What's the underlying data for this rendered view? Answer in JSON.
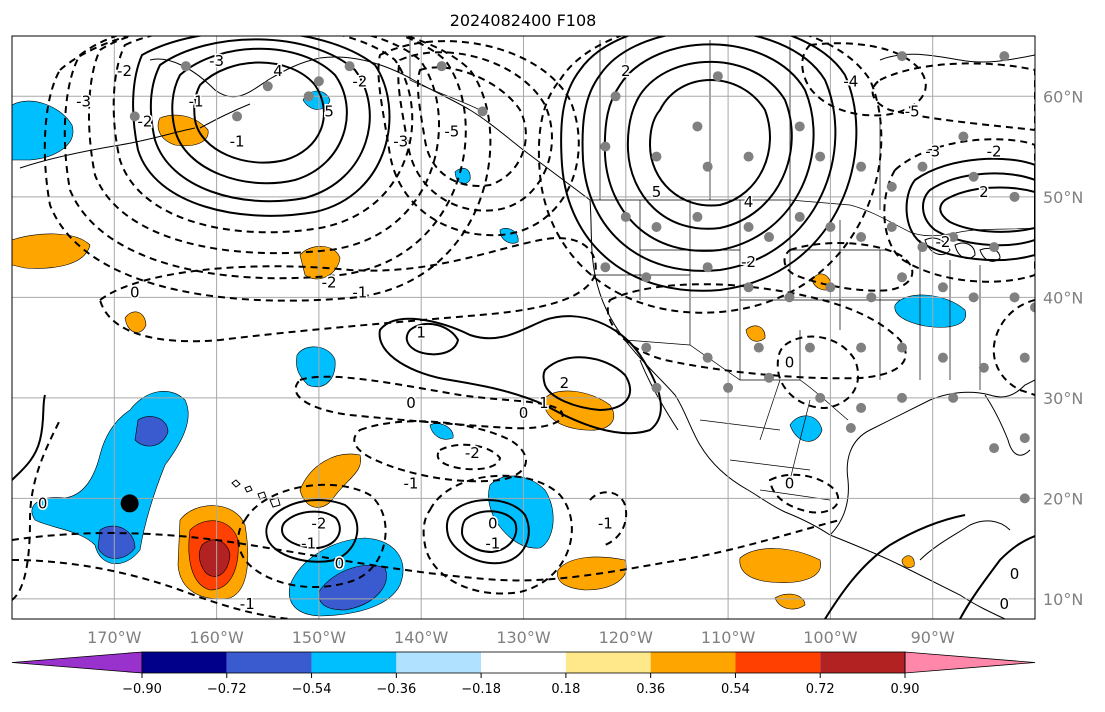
{
  "title": "2024082400 F108",
  "colors": {
    "purple": "#9932cc",
    "navy": "#00008b",
    "royal": "#3a5bcf",
    "deepsky": "#00bfff",
    "lightsky": "#b0e2ff",
    "white": "#ffffff",
    "khaki": "#ffe88a",
    "orange": "#ffa500",
    "orangered": "#ff4000",
    "firebrick": "#b22222",
    "pink": "#ff88aa",
    "gray": "#808080",
    "grid": "#a8a8a8"
  },
  "map": {
    "lon_range": [
      -180,
      -80
    ],
    "lat_range": [
      8,
      66
    ],
    "lat_labels": [
      {
        "lat": 60,
        "text": "60°N"
      },
      {
        "lat": 50,
        "text": "50°N"
      },
      {
        "lat": 40,
        "text": "40°N"
      },
      {
        "lat": 30,
        "text": "30°N"
      },
      {
        "lat": 20,
        "text": "20°N"
      },
      {
        "lat": 10,
        "text": "10°N"
      }
    ],
    "lon_labels": [
      {
        "lon": -170,
        "text": "170°W"
      },
      {
        "lon": -160,
        "text": "160°W"
      },
      {
        "lon": -150,
        "text": "150°W"
      },
      {
        "lon": -140,
        "text": "140°W"
      },
      {
        "lon": -130,
        "text": "130°W"
      },
      {
        "lon": -120,
        "text": "120°W"
      },
      {
        "lon": -110,
        "text": "110°W"
      },
      {
        "lon": -100,
        "text": "100°W"
      },
      {
        "lon": -90,
        "text": "90°W"
      }
    ],
    "contour_labels": [
      {
        "lon": -173,
        "lat": 59,
        "text": "-3"
      },
      {
        "lon": -169,
        "lat": 62,
        "text": "-2"
      },
      {
        "lon": -167,
        "lat": 57,
        "text": "-2"
      },
      {
        "lon": -162,
        "lat": 59,
        "text": "-1"
      },
      {
        "lon": -160,
        "lat": 63,
        "text": "-3"
      },
      {
        "lon": -154,
        "lat": 62,
        "text": "4"
      },
      {
        "lon": -149,
        "lat": 58,
        "text": "5"
      },
      {
        "lon": -146,
        "lat": 61,
        "text": "-2"
      },
      {
        "lon": -142,
        "lat": 55,
        "text": "-3"
      },
      {
        "lon": -137,
        "lat": 56,
        "text": "-5"
      },
      {
        "lon": -158,
        "lat": 55,
        "text": "-1"
      },
      {
        "lon": -168,
        "lat": 40,
        "text": "0"
      },
      {
        "lon": -149,
        "lat": 41,
        "text": "-2"
      },
      {
        "lon": -146,
        "lat": 40,
        "text": "-1"
      },
      {
        "lon": -120,
        "lat": 62,
        "text": "2"
      },
      {
        "lon": -117,
        "lat": 50,
        "text": "5"
      },
      {
        "lon": -108,
        "lat": 49,
        "text": "4"
      },
      {
        "lon": -108,
        "lat": 43,
        "text": "-2"
      },
      {
        "lon": -98,
        "lat": 61,
        "text": "-4"
      },
      {
        "lon": -92,
        "lat": 58,
        "text": "-5"
      },
      {
        "lon": -90,
        "lat": 54,
        "text": "-3"
      },
      {
        "lon": -84,
        "lat": 54,
        "text": "-2"
      },
      {
        "lon": -85,
        "lat": 50,
        "text": "2"
      },
      {
        "lon": -89,
        "lat": 45,
        "text": "-2"
      },
      {
        "lon": -140,
        "lat": 36,
        "text": "1"
      },
      {
        "lon": -126,
        "lat": 31,
        "text": "2"
      },
      {
        "lon": -128,
        "lat": 29,
        "text": "1"
      },
      {
        "lon": -130,
        "lat": 28,
        "text": "0"
      },
      {
        "lon": -141,
        "lat": 29,
        "text": "0"
      },
      {
        "lon": -135,
        "lat": 24,
        "text": "-2"
      },
      {
        "lon": -141,
        "lat": 21,
        "text": "-1"
      },
      {
        "lon": -177,
        "lat": 19,
        "text": "0"
      },
      {
        "lon": -150,
        "lat": 17,
        "text": "-2"
      },
      {
        "lon": -151,
        "lat": 15,
        "text": "-1"
      },
      {
        "lon": -148,
        "lat": 13,
        "text": "0"
      },
      {
        "lon": -133,
        "lat": 17,
        "text": "0"
      },
      {
        "lon": -133,
        "lat": 15,
        "text": "-1"
      },
      {
        "lon": -122,
        "lat": 17,
        "text": "-1"
      },
      {
        "lon": -157,
        "lat": 9,
        "text": "-1"
      },
      {
        "lon": -104,
        "lat": 21,
        "text": "0"
      },
      {
        "lon": -104,
        "lat": 33,
        "text": "0"
      },
      {
        "lon": -82,
        "lat": 12,
        "text": "0"
      },
      {
        "lon": -83,
        "lat": 9,
        "text": "0"
      }
    ],
    "marker": {
      "lon": -168.5,
      "lat": 19.5
    }
  },
  "colorbar": {
    "tick_labels": [
      "−0.90",
      "−0.72",
      "−0.54",
      "−0.36",
      "−0.18",
      "0.18",
      "0.36",
      "0.54",
      "0.72",
      "0.90"
    ]
  }
}
